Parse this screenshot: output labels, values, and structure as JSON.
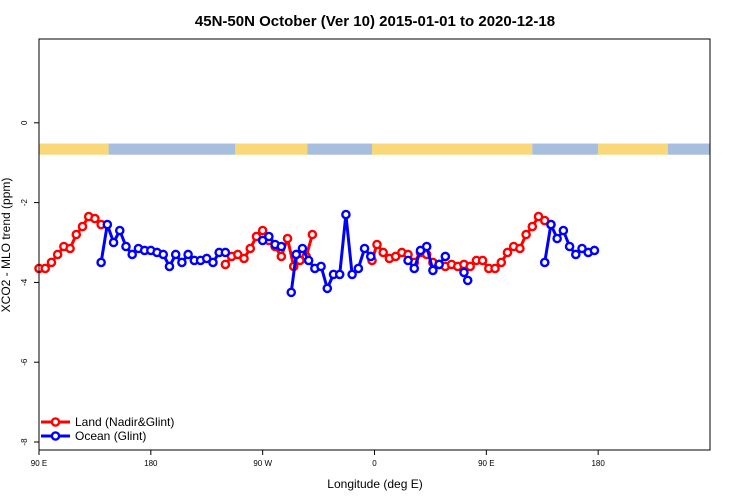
{
  "chart_data": {
    "type": "line",
    "title": "45N-50N October (Ver 10)   2015-01-01 to 2020-12-18",
    "xlabel": "Longitude (deg E)",
    "ylabel": "XCO2 - MLO trend (ppm)",
    "xlim": [
      90,
      630
    ],
    "ylim": [
      -8.2,
      2.1
    ],
    "x_ticks": [
      {
        "value": 90,
        "label": "90 E"
      },
      {
        "value": 180,
        "label": "180"
      },
      {
        "value": 270,
        "label": "90 W"
      },
      {
        "value": 360,
        "label": "0"
      },
      {
        "value": 450,
        "label": "90 E"
      },
      {
        "value": 540,
        "label": "180"
      }
    ],
    "y_ticks": [
      {
        "value": 0,
        "label": "0"
      },
      {
        "value": -2,
        "label": "-2"
      },
      {
        "value": -4,
        "label": "-4"
      },
      {
        "value": -6,
        "label": "-6"
      },
      {
        "value": -8,
        "label": "-8"
      }
    ],
    "land_ocean_strip": {
      "y_range": [
        -0.8,
        -0.52
      ],
      "land_color": "#f8d878",
      "ocean_color": "#a8bede",
      "segments": [
        {
          "type": "land",
          "from": 90,
          "to": 146
        },
        {
          "type": "ocean",
          "from": 146,
          "to": 248
        },
        {
          "type": "land",
          "from": 248,
          "to": 306
        },
        {
          "type": "ocean",
          "from": 306,
          "to": 358
        },
        {
          "type": "land",
          "from": 358,
          "to": 487
        },
        {
          "type": "ocean",
          "from": 487,
          "to": 540
        },
        {
          "type": "land",
          "from": 540,
          "to": 596
        },
        {
          "type": "ocean",
          "from": 596,
          "to": 630
        }
      ]
    },
    "legend": {
      "position": "bottom-left"
    },
    "series": [
      {
        "name": "Land (Nadir&Glint)",
        "color": "#ff0000",
        "segments": [
          [
            [
              90,
              -3.65
            ],
            [
              95,
              -3.65
            ],
            [
              100,
              -3.5
            ],
            [
              105,
              -3.3
            ],
            [
              110,
              -3.1
            ],
            [
              115,
              -3.15
            ],
            [
              120,
              -2.8
            ],
            [
              125,
              -2.6
            ],
            [
              130,
              -2.35
            ],
            [
              135,
              -2.4
            ],
            [
              140,
              -2.55
            ]
          ],
          [
            [
              240,
              -3.55
            ],
            [
              245,
              -3.35
            ],
            [
              250,
              -3.3
            ],
            [
              255,
              -3.4
            ],
            [
              260,
              -3.15
            ],
            [
              265,
              -2.85
            ],
            [
              270,
              -2.7
            ],
            [
              275,
              -2.95
            ],
            [
              280,
              -3.1
            ],
            [
              285,
              -3.35
            ],
            [
              290,
              -2.9
            ],
            [
              295,
              -3.6
            ],
            [
              300,
              -3.45
            ],
            [
              305,
              -3.35
            ],
            [
              310,
              -2.8
            ]
          ],
          [
            [
              358,
              -3.45
            ],
            [
              362,
              -3.05
            ],
            [
              367,
              -3.25
            ],
            [
              372,
              -3.4
            ],
            [
              377,
              -3.35
            ],
            [
              382,
              -3.25
            ],
            [
              387,
              -3.3
            ],
            [
              392,
              -3.5
            ],
            [
              397,
              -3.25
            ],
            [
              402,
              -3.3
            ],
            [
              407,
              -3.5
            ],
            [
              412,
              -3.55
            ],
            [
              417,
              -3.6
            ],
            [
              422,
              -3.55
            ],
            [
              427,
              -3.6
            ],
            [
              432,
              -3.55
            ],
            [
              437,
              -3.6
            ],
            [
              442,
              -3.45
            ],
            [
              447,
              -3.45
            ],
            [
              452,
              -3.65
            ],
            [
              457,
              -3.65
            ],
            [
              462,
              -3.5
            ],
            [
              467,
              -3.25
            ],
            [
              472,
              -3.1
            ],
            [
              477,
              -3.15
            ],
            [
              482,
              -2.8
            ],
            [
              487,
              -2.6
            ],
            [
              492,
              -2.35
            ],
            [
              497,
              -2.45
            ],
            [
              502,
              -2.55
            ]
          ]
        ]
      },
      {
        "name": "Ocean (Glint)",
        "color": "#0000ff",
        "segments": [
          [
            [
              140,
              -3.5
            ],
            [
              145,
              -2.55
            ],
            [
              150,
              -3.0
            ],
            [
              155,
              -2.7
            ],
            [
              160,
              -3.1
            ],
            [
              165,
              -3.3
            ],
            [
              170,
              -3.15
            ],
            [
              175,
              -3.2
            ],
            [
              180,
              -3.2
            ],
            [
              185,
              -3.25
            ],
            [
              190,
              -3.3
            ],
            [
              195,
              -3.6
            ],
            [
              200,
              -3.3
            ],
            [
              205,
              -3.5
            ],
            [
              210,
              -3.3
            ],
            [
              215,
              -3.45
            ],
            [
              220,
              -3.45
            ],
            [
              225,
              -3.4
            ],
            [
              230,
              -3.5
            ],
            [
              235,
              -3.25
            ],
            [
              240,
              -3.25
            ]
          ],
          [
            [
              270,
              -2.95
            ],
            [
              275,
              -2.85
            ],
            [
              280,
              -3.05
            ],
            [
              285,
              -3.1
            ]
          ],
          [
            [
              293,
              -4.25
            ],
            [
              297,
              -3.3
            ],
            [
              302,
              -3.15
            ],
            [
              307,
              -3.45
            ],
            [
              312,
              -3.65
            ],
            [
              317,
              -3.6
            ],
            [
              322,
              -4.15
            ],
            [
              327,
              -3.8
            ],
            [
              332,
              -3.8
            ],
            [
              337,
              -2.3
            ],
            [
              342,
              -3.8
            ],
            [
              347,
              -3.65
            ],
            [
              352,
              -3.15
            ],
            [
              357,
              -3.35
            ]
          ],
          [
            [
              387,
              -3.45
            ],
            [
              392,
              -3.65
            ],
            [
              397,
              -3.2
            ],
            [
              402,
              -3.1
            ],
            [
              407,
              -3.7
            ],
            [
              412,
              -3.55
            ],
            [
              417,
              -3.35
            ]
          ],
          [
            [
              432,
              -3.75
            ],
            [
              435,
              -3.95
            ]
          ],
          [
            [
              497,
              -3.5
            ],
            [
              502,
              -2.55
            ],
            [
              507,
              -2.9
            ],
            [
              512,
              -2.7
            ],
            [
              517,
              -3.1
            ],
            [
              522,
              -3.3
            ],
            [
              527,
              -3.15
            ],
            [
              532,
              -3.25
            ],
            [
              537,
              -3.2
            ]
          ]
        ]
      }
    ]
  }
}
